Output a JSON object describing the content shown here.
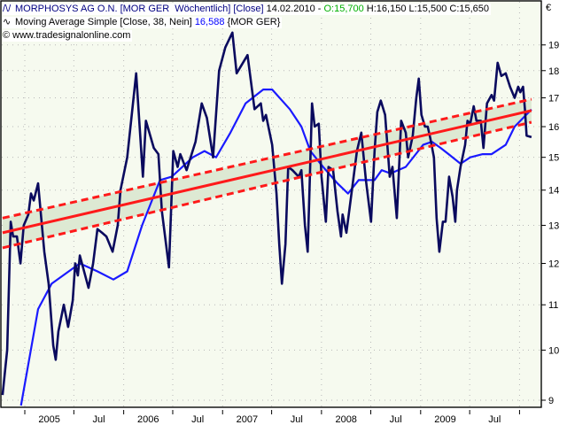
{
  "header": {
    "instrument": "MORPHOSYS AG O.N. [MOR GER  Wöchentlich] [Close]",
    "date": "14.02.2010 - ",
    "open": "O:15,700",
    "hlc": " H:16,150 L:15,500 C:15,650",
    "indicator": "Moving Average Simple [Close, 38, Nein]",
    "indicator_value": "16,588",
    "indicator_symbol": " {MOR GER}",
    "copyright": "© www.tradesignalonline.com",
    "instrument_icon": "line-chart-icon",
    "indicator_icon": "wave-icon"
  },
  "colors": {
    "price": "#0a0a5e",
    "ma": "#1a1aff",
    "regression": "#ff1a1a",
    "band": "#dde9d3",
    "plot_bg": "#f6faef",
    "open_text": "#00b000"
  },
  "chart_data": {
    "type": "line",
    "y_scale": "log",
    "ylim": [
      8.9,
      20.3
    ],
    "yunit": "€",
    "y_ticks": [
      9,
      10,
      11,
      12,
      13,
      14,
      15,
      16,
      17,
      18,
      19
    ],
    "x_ticks": [
      "2005",
      "Jul",
      "2006",
      "Jul",
      "2007",
      "Jul",
      "2008",
      "Jul",
      "2009",
      "Jul"
    ],
    "x_tick_dates": [
      "2005-01-01",
      "2005-07-01",
      "2006-01-01",
      "2006-07-01",
      "2007-01-01",
      "2007-07-01",
      "2008-01-01",
      "2008-07-01",
      "2009-01-01",
      "2009-07-01",
      "2010-01-01"
    ],
    "grid": true,
    "series": [
      {
        "name": "MORPHOSYS AG O.N.",
        "style": "line",
        "points": [
          [
            "2004-10-11",
            9.1
          ],
          [
            "2004-10-28",
            10.0
          ],
          [
            "2004-11-10",
            13.1
          ],
          [
            "2004-11-19",
            12.7
          ],
          [
            "2004-12-03",
            12.7
          ],
          [
            "2004-12-16",
            12.0
          ],
          [
            "2004-12-28",
            13.0
          ],
          [
            "2005-01-14",
            13.3
          ],
          [
            "2005-01-24",
            13.9
          ],
          [
            "2005-02-03",
            13.7
          ],
          [
            "2005-02-19",
            14.2
          ],
          [
            "2005-03-14",
            12.3
          ],
          [
            "2005-03-30",
            11.5
          ],
          [
            "2005-04-16",
            10.1
          ],
          [
            "2005-04-25",
            9.8
          ],
          [
            "2005-05-05",
            10.4
          ],
          [
            "2005-05-25",
            11.0
          ],
          [
            "2005-06-10",
            10.5
          ],
          [
            "2005-06-27",
            11.1
          ],
          [
            "2005-07-06",
            12.0
          ],
          [
            "2005-07-16",
            11.7
          ],
          [
            "2005-07-23",
            12.2
          ],
          [
            "2005-08-24",
            11.4
          ],
          [
            "2005-09-10",
            12.0
          ],
          [
            "2005-09-26",
            12.9
          ],
          [
            "2005-10-13",
            12.8
          ],
          [
            "2005-10-29",
            12.7
          ],
          [
            "2005-11-21",
            12.3
          ],
          [
            "2005-12-10",
            13.0
          ],
          [
            "2005-12-20",
            14.0
          ],
          [
            "2006-01-14",
            15.0
          ],
          [
            "2006-02-16",
            17.9
          ],
          [
            "2006-03-13",
            14.4
          ],
          [
            "2006-03-24",
            16.2
          ],
          [
            "2006-04-22",
            15.3
          ],
          [
            "2006-05-09",
            15.1
          ],
          [
            "2006-05-22",
            13.4
          ],
          [
            "2006-06-17",
            11.9
          ],
          [
            "2006-07-03",
            15.2
          ],
          [
            "2006-07-19",
            14.7
          ],
          [
            "2006-07-29",
            15.1
          ],
          [
            "2006-08-21",
            14.6
          ],
          [
            "2006-09-23",
            15.5
          ],
          [
            "2006-10-16",
            16.8
          ],
          [
            "2006-11-04",
            16.3
          ],
          [
            "2006-11-27",
            15.0
          ],
          [
            "2006-12-19",
            18.0
          ],
          [
            "2007-01-11",
            18.9
          ],
          [
            "2007-02-06",
            19.5
          ],
          [
            "2007-02-22",
            17.9
          ],
          [
            "2007-03-17",
            18.3
          ],
          [
            "2007-04-03",
            18.6
          ],
          [
            "2007-04-29",
            16.6
          ],
          [
            "2007-05-22",
            16.8
          ],
          [
            "2007-05-31",
            16.2
          ],
          [
            "2007-06-10",
            16.4
          ],
          [
            "2007-07-03",
            15.4
          ],
          [
            "2007-07-19",
            13.9
          ],
          [
            "2007-07-29",
            12.5
          ],
          [
            "2007-08-08",
            11.5
          ],
          [
            "2007-08-21",
            12.5
          ],
          [
            "2007-08-31",
            14.7
          ],
          [
            "2007-09-16",
            14.6
          ],
          [
            "2007-10-09",
            14.4
          ],
          [
            "2007-10-19",
            14.6
          ],
          [
            "2007-11-01",
            13.0
          ],
          [
            "2007-11-11",
            12.3
          ],
          [
            "2007-11-27",
            16.8
          ],
          [
            "2007-12-07",
            16.0
          ],
          [
            "2007-12-22",
            16.1
          ],
          [
            "2008-01-01",
            14.4
          ],
          [
            "2008-01-17",
            13.1
          ],
          [
            "2008-01-27",
            14.7
          ],
          [
            "2008-02-13",
            14.6
          ],
          [
            "2008-02-29",
            13.4
          ],
          [
            "2008-03-13",
            12.7
          ],
          [
            "2008-03-19",
            13.3
          ],
          [
            "2008-04-02",
            12.8
          ],
          [
            "2008-04-24",
            14.1
          ],
          [
            "2008-05-11",
            15.2
          ],
          [
            "2008-05-27",
            15.8
          ],
          [
            "2008-06-13",
            14.3
          ],
          [
            "2008-07-02",
            13.1
          ],
          [
            "2008-07-15",
            15.2
          ],
          [
            "2008-07-25",
            16.5
          ],
          [
            "2008-08-07",
            16.9
          ],
          [
            "2008-08-23",
            16.4
          ],
          [
            "2008-09-09",
            14.4
          ],
          [
            "2008-09-19",
            14.7
          ],
          [
            "2008-10-05",
            13.2
          ],
          [
            "2008-10-21",
            16.2
          ],
          [
            "2008-11-07",
            15.8
          ],
          [
            "2008-11-16",
            15.0
          ],
          [
            "2008-12-03",
            15.7
          ],
          [
            "2008-12-16",
            17.0
          ],
          [
            "2008-12-25",
            17.7
          ],
          [
            "2009-01-04",
            16.4
          ],
          [
            "2009-01-17",
            16.0
          ],
          [
            "2009-01-27",
            16.0
          ],
          [
            "2009-02-06",
            15.6
          ],
          [
            "2009-02-19",
            15.0
          ],
          [
            "2009-03-01",
            13.2
          ],
          [
            "2009-03-11",
            12.3
          ],
          [
            "2009-03-24",
            13.1
          ],
          [
            "2009-04-03",
            13.1
          ],
          [
            "2009-04-16",
            14.4
          ],
          [
            "2009-04-29",
            13.8
          ],
          [
            "2009-05-09",
            13.1
          ],
          [
            "2009-05-15",
            14.0
          ],
          [
            "2009-05-28",
            14.7
          ],
          [
            "2009-06-14",
            15.4
          ],
          [
            "2009-06-23",
            16.2
          ],
          [
            "2009-07-03",
            16.1
          ],
          [
            "2009-07-16",
            16.7
          ],
          [
            "2009-07-26",
            16.2
          ],
          [
            "2009-08-11",
            16.2
          ],
          [
            "2009-08-21",
            15.3
          ],
          [
            "2009-09-03",
            16.8
          ],
          [
            "2009-09-20",
            17.1
          ],
          [
            "2009-09-29",
            16.9
          ],
          [
            "2009-10-12",
            18.3
          ],
          [
            "2009-10-26",
            17.8
          ],
          [
            "2009-11-11",
            17.9
          ],
          [
            "2009-11-27",
            17.4
          ],
          [
            "2009-12-14",
            17.0
          ],
          [
            "2009-12-27",
            17.4
          ],
          [
            "2010-01-04",
            17.2
          ],
          [
            "2010-01-14",
            17.4
          ],
          [
            "2010-01-21",
            16.6
          ],
          [
            "2010-01-27",
            15.7
          ],
          [
            "2010-02-14",
            15.65
          ]
        ]
      },
      {
        "name": "Moving Average Simple [Close, 38, Nein]",
        "style": "line",
        "points": [
          [
            "2004-12-18",
            8.9
          ],
          [
            "2005-02-19",
            10.9
          ],
          [
            "2005-04-10",
            11.5
          ],
          [
            "2005-07-23",
            12.0
          ],
          [
            "2005-09-26",
            11.8
          ],
          [
            "2005-11-24",
            11.6
          ],
          [
            "2006-01-14",
            11.8
          ],
          [
            "2006-03-10",
            13.0
          ],
          [
            "2006-05-15",
            14.3
          ],
          [
            "2006-06-27",
            14.4
          ],
          [
            "2006-09-13",
            15.0
          ],
          [
            "2006-10-26",
            15.2
          ],
          [
            "2006-12-08",
            15.0
          ],
          [
            "2007-01-30",
            15.8
          ],
          [
            "2007-03-27",
            16.8
          ],
          [
            "2007-05-31",
            17.3
          ],
          [
            "2007-07-03",
            17.3
          ],
          [
            "2007-09-06",
            16.6
          ],
          [
            "2007-10-19",
            16.0
          ],
          [
            "2007-11-21",
            15.2
          ],
          [
            "2008-01-07",
            14.7
          ],
          [
            "2008-02-29",
            14.2
          ],
          [
            "2008-04-08",
            13.9
          ],
          [
            "2008-05-17",
            14.3
          ],
          [
            "2008-07-15",
            14.3
          ],
          [
            "2008-08-10",
            14.6
          ],
          [
            "2008-09-12",
            14.5
          ],
          [
            "2008-11-07",
            14.7
          ],
          [
            "2009-01-10",
            15.4
          ],
          [
            "2009-02-12",
            15.5
          ],
          [
            "2009-03-16",
            15.3
          ],
          [
            "2009-04-29",
            15.0
          ],
          [
            "2009-05-28",
            14.8
          ],
          [
            "2009-07-03",
            15.0
          ],
          [
            "2009-08-18",
            15.1
          ],
          [
            "2009-09-20",
            15.1
          ],
          [
            "2009-11-11",
            15.4
          ],
          [
            "2009-12-14",
            16.0
          ],
          [
            "2010-02-14",
            16.588
          ]
        ]
      }
    ],
    "regression_channel": {
      "start_date": "2004-10-11",
      "end_date": "2010-02-14",
      "center": [
        12.8,
        16.55
      ],
      "upper": [
        13.2,
        16.95
      ],
      "lower": [
        12.4,
        16.15
      ]
    }
  }
}
